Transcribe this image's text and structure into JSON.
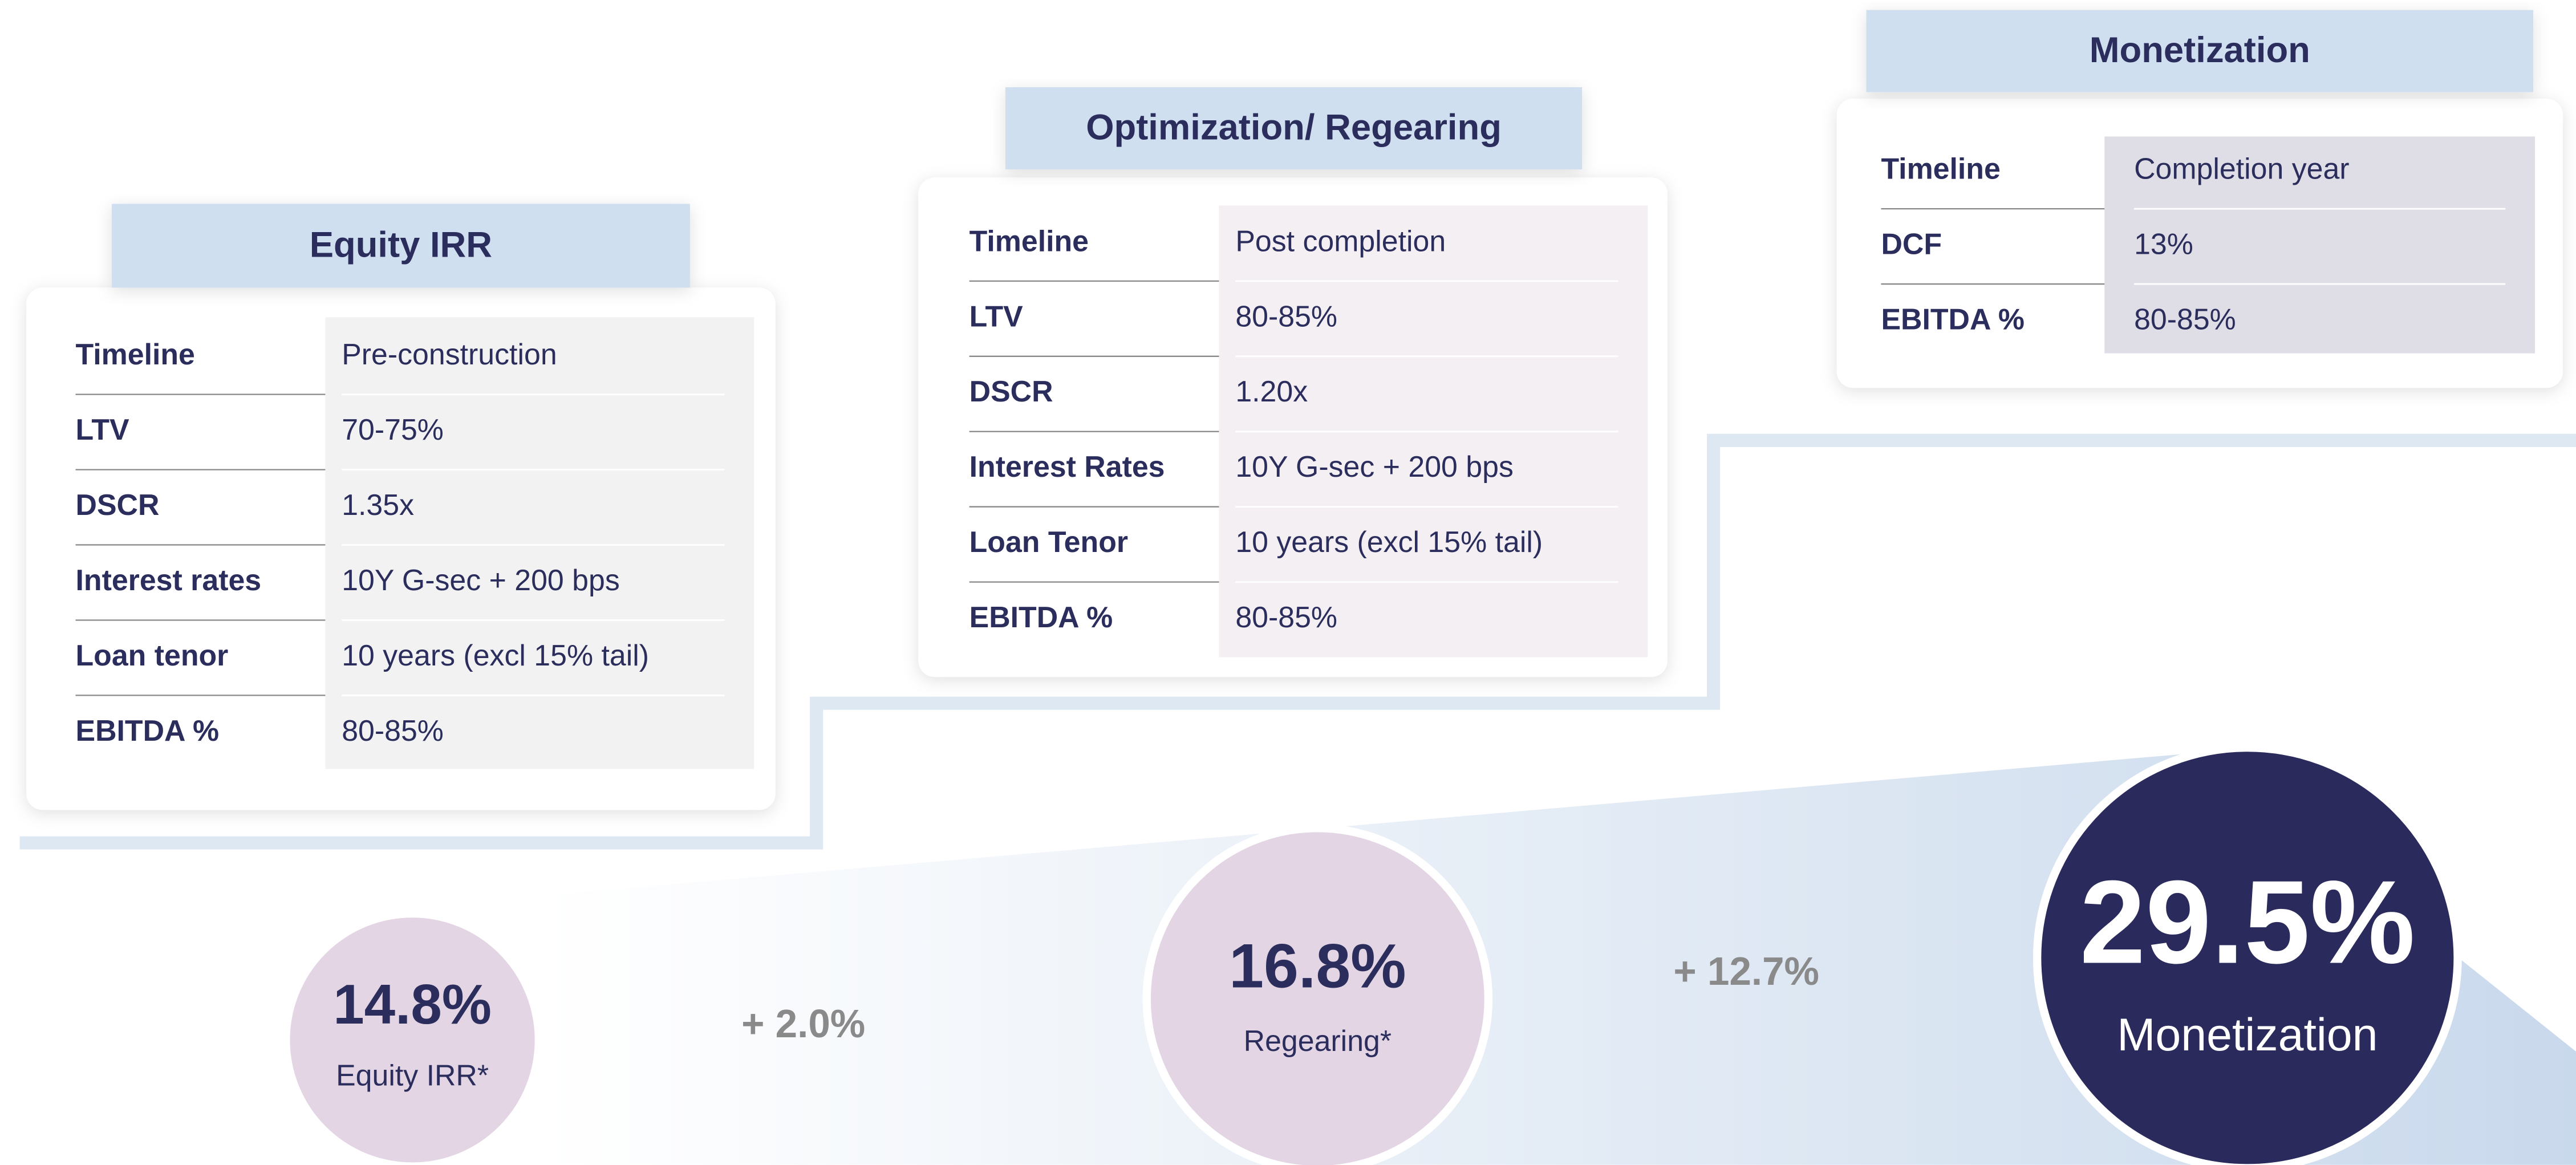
{
  "panels": [
    {
      "title": "Equity IRR",
      "rows": [
        [
          "Timeline",
          "Pre-construction"
        ],
        [
          "LTV",
          "70-75%"
        ],
        [
          "DSCR",
          "1.35x"
        ],
        [
          "Interest rates",
          "10Y G-sec + 200 bps"
        ],
        [
          "Loan tenor",
          "10 years (excl 15% tail)"
        ],
        [
          "EBITDA %",
          "80-85%"
        ]
      ]
    },
    {
      "title": "Optimization/ Regearing",
      "rows": [
        [
          "Timeline",
          "Post completion"
        ],
        [
          "LTV",
          "80-85%"
        ],
        [
          "DSCR",
          "1.20x"
        ],
        [
          "Interest Rates",
          "10Y G-sec + 200 bps"
        ],
        [
          "Loan Tenor",
          "10 years (excl 15% tail)"
        ],
        [
          "EBITDA %",
          "80-85%"
        ]
      ]
    },
    {
      "title": "Monetization",
      "rows": [
        [
          "Timeline",
          "Completion year"
        ],
        [
          "DCF",
          "13%"
        ],
        [
          "EBITDA %",
          "80-85%"
        ]
      ]
    }
  ],
  "circles": [
    {
      "value": "14.8%",
      "label": "Equity IRR*"
    },
    {
      "value": "16.8%",
      "label": "Regearing*"
    },
    {
      "value": "29.5%",
      "label": "Monetization"
    }
  ],
  "increments": [
    "+ 2.0%",
    "+ 12.7%"
  ]
}
